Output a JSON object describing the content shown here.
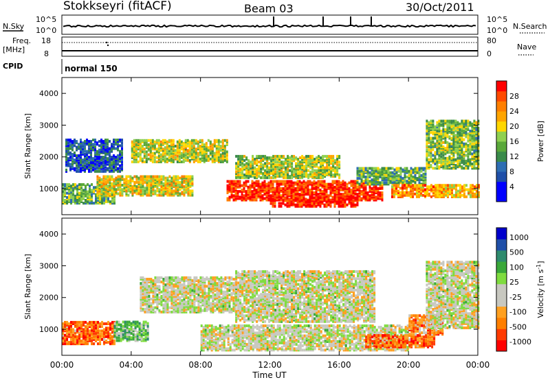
{
  "header": {
    "station": "Stokkseyri (fitACF)",
    "beam": "Beam 03",
    "date": "30/Oct/2011"
  },
  "strips": {
    "nsky_label": "N.Sky",
    "nsky_top": "10^5",
    "nsky_bottom": "10^0",
    "nsearch_label": "N.Search",
    "nsearch_top": "10^5",
    "nsearch_bottom": "10^0",
    "freq_label": "Freq.",
    "freq_unit": "[MHz]",
    "freq_ticks": [
      "18",
      "8"
    ],
    "nave_label": "Nave",
    "nave_ticks": [
      "80",
      "0"
    ],
    "cpid_label": "CPID",
    "cpid_value": "normal 150"
  },
  "colors": {
    "power": [
      "#0000ff",
      "#0000ff",
      "#1f4fa8",
      "#2e6eb3",
      "#3a8b4a",
      "#5aa83a",
      "#8fd050",
      "#ffd700",
      "#ffa500",
      "#ff7f00",
      "#ff4a00",
      "#ff0000"
    ],
    "velocity": [
      "#ff0000",
      "#ff3a00",
      "#ff7f00",
      "#ffa020",
      "#c8c8c0",
      "#c8c8c0",
      "#7fdc3f",
      "#3aa83a",
      "#2e8b6e",
      "#1f4fa8",
      "#0000cc"
    ]
  },
  "chart_data": [
    {
      "type": "heatmap",
      "panel": "power",
      "ylabel": "Slant Range [km]",
      "ylim": [
        180,
        4500
      ],
      "yticks": [
        "1000",
        "2000",
        "3000",
        "4000"
      ],
      "colorbar_label": "Power [dB]",
      "colorbar_ticks": [
        "4",
        "8",
        "12",
        "16",
        "20",
        "24",
        "28"
      ],
      "bands": [
        {
          "start": 0.0,
          "end": 3.0,
          "lo": 500,
          "hi": 1100,
          "level": 0.45
        },
        {
          "start": 0.2,
          "end": 3.5,
          "lo": 1500,
          "hi": 2500,
          "level": 0.25
        },
        {
          "start": 2.0,
          "end": 7.5,
          "lo": 750,
          "hi": 1350,
          "level": 0.62
        },
        {
          "start": 4.0,
          "end": 9.5,
          "lo": 1800,
          "hi": 2500,
          "level": 0.58
        },
        {
          "start": 9.5,
          "end": 18.5,
          "lo": 600,
          "hi": 1200,
          "level": 0.92
        },
        {
          "start": 12.0,
          "end": 17.0,
          "lo": 400,
          "hi": 700,
          "level": 0.97
        },
        {
          "start": 10.0,
          "end": 16.0,
          "lo": 1300,
          "hi": 2000,
          "level": 0.55
        },
        {
          "start": 17.0,
          "end": 21.0,
          "lo": 1100,
          "hi": 1600,
          "level": 0.45
        },
        {
          "start": 19.0,
          "end": 22.0,
          "lo": 700,
          "hi": 1100,
          "level": 0.75
        },
        {
          "start": 21.0,
          "end": 24.0,
          "lo": 1600,
          "hi": 3100,
          "level": 0.5
        },
        {
          "start": 21.5,
          "end": 24.0,
          "lo": 700,
          "hi": 1100,
          "level": 0.7
        }
      ]
    },
    {
      "type": "heatmap",
      "panel": "velocity",
      "ylabel": "Slant Range [km]",
      "xlabel": "Time UT",
      "ylim": [
        180,
        4500
      ],
      "yticks": [
        "1000",
        "2000",
        "3000",
        "4000"
      ],
      "xticks": [
        "00:00",
        "04:00",
        "08:00",
        "12:00",
        "16:00",
        "20:00",
        "00:00"
      ],
      "colorbar_label": "Velocity [m s^-1]",
      "colorbar_ticks": [
        "1000",
        "500",
        "100",
        "25",
        "-25",
        "-100",
        "-500",
        "-1000"
      ],
      "bands": [
        {
          "start": 0.0,
          "end": 3.0,
          "lo": 500,
          "hi": 1200,
          "level": 0.2
        },
        {
          "start": 3.0,
          "end": 5.0,
          "lo": 600,
          "hi": 1200,
          "level": 0.62
        },
        {
          "start": 4.5,
          "end": 10.0,
          "lo": 1500,
          "hi": 2600,
          "level": 0.47
        },
        {
          "start": 8.0,
          "end": 20.0,
          "lo": 300,
          "hi": 1100,
          "level": 0.47
        },
        {
          "start": 10.0,
          "end": 18.0,
          "lo": 1200,
          "hi": 2800,
          "level": 0.47
        },
        {
          "start": 17.5,
          "end": 21.5,
          "lo": 400,
          "hi": 800,
          "level": 0.2
        },
        {
          "start": 20.0,
          "end": 22.0,
          "lo": 800,
          "hi": 1400,
          "level": 0.25
        },
        {
          "start": 21.0,
          "end": 24.0,
          "lo": 1000,
          "hi": 3100,
          "level": 0.47
        }
      ]
    }
  ],
  "time_axis": {
    "hours": [
      0,
      4,
      8,
      12,
      16,
      20,
      24
    ],
    "labels": [
      "00:00",
      "04:00",
      "08:00",
      "12:00",
      "16:00",
      "20:00",
      "00:00"
    ],
    "xlabel": "Time UT"
  }
}
